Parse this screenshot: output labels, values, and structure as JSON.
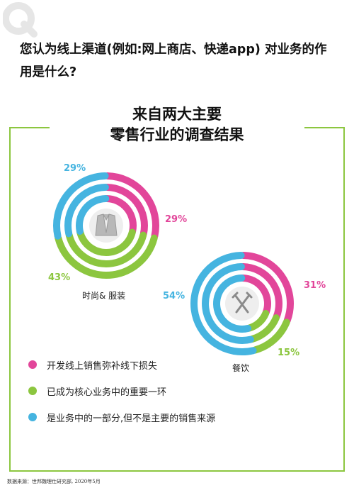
{
  "question": "您认为线上渠道(例如:网上商店、快递app) 对业务的作用是什么?",
  "title_line1": "来自两大主要",
  "title_line2": "零售行业的调查结果",
  "colors": {
    "pink": "#e2469a",
    "green": "#8cc63f",
    "blue": "#45b4e0",
    "frame": "#8cc63f"
  },
  "chart_data": [
    {
      "type": "pie",
      "label": "时尚& 服装",
      "icon": "jacket-icon",
      "categories": [
        "开发线上销售弥补线下损失",
        "已成为核心业务中的重要一环",
        "是业务中的一部分,但不是主要的销售来源"
      ],
      "values": [
        29,
        43,
        29
      ],
      "value_labels": [
        "29%",
        "43%",
        "29%"
      ]
    },
    {
      "type": "pie",
      "label": "餐饮",
      "icon": "fork-knife-icon",
      "categories": [
        "开发线上销售弥补线下损失",
        "已成为核心业务中的重要一环",
        "是业务中的一部分,但不是主要的销售来源"
      ],
      "values": [
        31,
        15,
        54
      ],
      "value_labels": [
        "31%",
        "15%",
        "54%"
      ]
    }
  ],
  "legend": [
    {
      "text": "开发线上销售弥补线下损失",
      "color": "#e2469a"
    },
    {
      "text": "已成为核心业务中的重要一环",
      "color": "#8cc63f"
    },
    {
      "text": "是业务中的一部分,但不是主要的销售来源",
      "color": "#45b4e0"
    }
  ],
  "source": "数据来源：世邦魏理仕研究部, 2020年5月"
}
